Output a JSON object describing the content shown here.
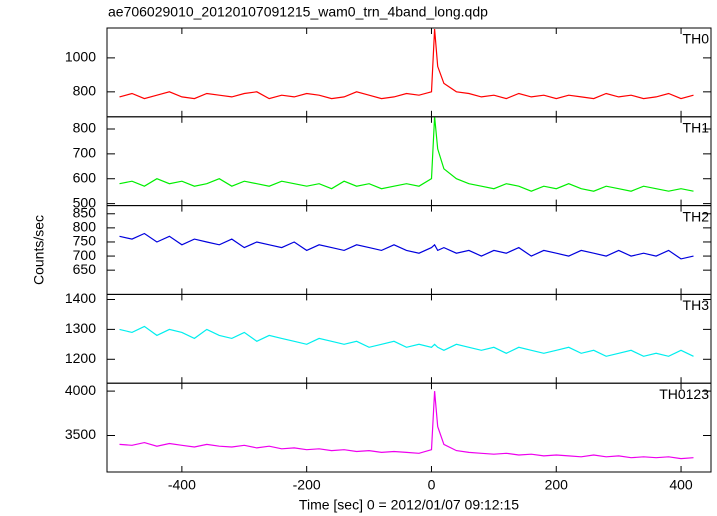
{
  "chart_data": {
    "type": "line",
    "title": "ae706029010_20120107091215_wam0_trn_4band_long.qdp",
    "xlabel": "Time [sec] 0 = 2012/01/07 09:12:15",
    "ylabel": "Counts/sec",
    "xlim": [
      -520,
      448
    ],
    "xticks": [
      -400,
      -200,
      0,
      200,
      400
    ],
    "x": [
      -500,
      -480,
      -460,
      -440,
      -420,
      -400,
      -380,
      -360,
      -340,
      -320,
      -300,
      -280,
      -260,
      -240,
      -220,
      -200,
      -180,
      -160,
      -140,
      -120,
      -100,
      -80,
      -60,
      -40,
      -20,
      0,
      5,
      10,
      20,
      40,
      60,
      80,
      100,
      120,
      140,
      160,
      180,
      200,
      220,
      240,
      260,
      280,
      300,
      320,
      340,
      360,
      380,
      400,
      420
    ],
    "series": [
      {
        "name": "TH0",
        "color": "#ff0000",
        "ylim": [
          653,
          1176
        ],
        "yticks": [
          800,
          1000
        ],
        "values": [
          770,
          790,
          760,
          780,
          800,
          770,
          760,
          790,
          780,
          770,
          790,
          800,
          760,
          780,
          770,
          790,
          780,
          760,
          770,
          800,
          780,
          760,
          770,
          790,
          780,
          800,
          1170,
          950,
          850,
          800,
          790,
          770,
          780,
          760,
          790,
          770,
          780,
          760,
          780,
          770,
          760,
          790,
          770,
          780,
          760,
          770,
          790,
          760,
          780
        ]
      },
      {
        "name": "TH1",
        "color": "#00ee00",
        "ylim": [
          492,
          849
        ],
        "yticks": [
          500,
          600,
          700,
          800
        ],
        "values": [
          580,
          590,
          570,
          600,
          580,
          590,
          570,
          580,
          600,
          570,
          590,
          580,
          570,
          590,
          580,
          570,
          580,
          560,
          590,
          570,
          580,
          560,
          570,
          580,
          570,
          600,
          850,
          720,
          640,
          600,
          580,
          570,
          560,
          580,
          570,
          550,
          570,
          560,
          580,
          560,
          550,
          570,
          560,
          550,
          570,
          560,
          550,
          560,
          550
        ]
      },
      {
        "name": "TH2",
        "color": "#0000dd",
        "ylim": [
          564,
          879
        ],
        "yticks": [
          650,
          700,
          750,
          800,
          850
        ],
        "values": [
          770,
          760,
          780,
          750,
          770,
          740,
          760,
          750,
          740,
          760,
          730,
          750,
          740,
          730,
          750,
          720,
          740,
          730,
          720,
          740,
          730,
          720,
          740,
          720,
          710,
          730,
          740,
          720,
          730,
          710,
          720,
          700,
          720,
          710,
          730,
          700,
          720,
          710,
          700,
          720,
          710,
          700,
          720,
          700,
          710,
          700,
          720,
          690,
          700
        ]
      },
      {
        "name": "TH3",
        "color": "#00eeee",
        "ylim": [
          1120,
          1417
        ],
        "yticks": [
          1200,
          1300,
          1400
        ],
        "values": [
          1300,
          1290,
          1310,
          1280,
          1300,
          1290,
          1270,
          1300,
          1280,
          1270,
          1290,
          1260,
          1280,
          1270,
          1260,
          1250,
          1270,
          1260,
          1250,
          1260,
          1240,
          1250,
          1260,
          1240,
          1250,
          1240,
          1250,
          1240,
          1230,
          1250,
          1240,
          1230,
          1240,
          1220,
          1240,
          1230,
          1220,
          1230,
          1240,
          1220,
          1230,
          1210,
          1220,
          1230,
          1210,
          1220,
          1210,
          1230,
          1210
        ]
      },
      {
        "name": "TH0123",
        "color": "#ee00ee",
        "ylim": [
          3089,
          4089
        ],
        "yticks": [
          3500,
          4000
        ],
        "values": [
          3400,
          3390,
          3420,
          3380,
          3410,
          3390,
          3370,
          3400,
          3380,
          3370,
          3390,
          3360,
          3380,
          3350,
          3360,
          3340,
          3350,
          3330,
          3340,
          3320,
          3330,
          3310,
          3320,
          3310,
          3300,
          3340,
          4000,
          3600,
          3400,
          3330,
          3310,
          3300,
          3290,
          3300,
          3280,
          3290,
          3270,
          3280,
          3270,
          3260,
          3280,
          3260,
          3270,
          3250,
          3260,
          3250,
          3260,
          3240,
          3250
        ]
      }
    ]
  }
}
